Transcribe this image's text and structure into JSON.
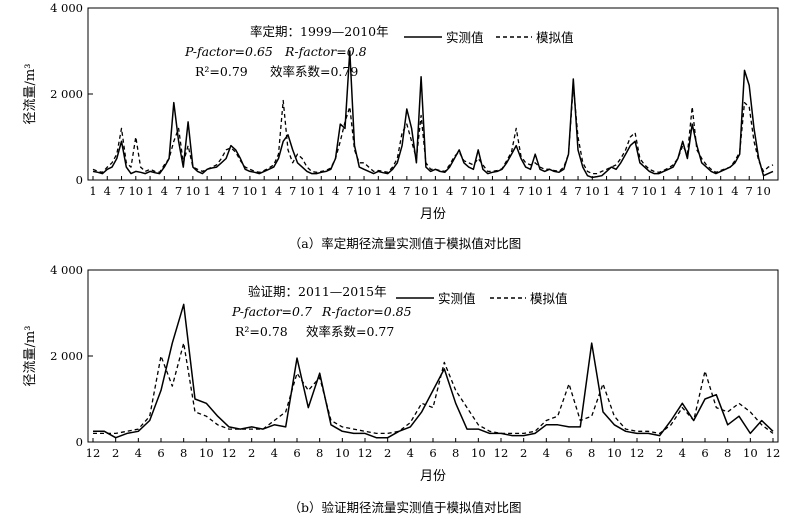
{
  "chart_data": [
    {
      "type": "line",
      "xlabel": "月份",
      "ylabel": "径流量/m³",
      "ylim": [
        0,
        4000
      ],
      "yticks": [
        "0",
        "2 000",
        "4 000"
      ],
      "categories": [
        "1",
        "",
        "",
        "4",
        "",
        "",
        "7",
        "",
        "",
        "10",
        "",
        "",
        "1",
        "",
        "",
        "4",
        "",
        "",
        "7",
        "",
        "",
        "10",
        "",
        "",
        "1",
        "",
        "",
        "4",
        "",
        "",
        "7",
        "",
        "",
        "10",
        "",
        "",
        "1",
        "",
        "",
        "4",
        "",
        "",
        "7",
        "",
        "",
        "10",
        "",
        "",
        "1",
        "",
        "",
        "4",
        "",
        "",
        "7",
        "",
        "",
        "10",
        "",
        "",
        "1",
        "",
        "",
        "4",
        "",
        "",
        "7",
        "",
        "",
        "10",
        "",
        "",
        "1",
        "",
        "",
        "4",
        "",
        "",
        "7",
        "",
        "",
        "10",
        "",
        "",
        "1",
        "",
        "",
        "4",
        "",
        "",
        "7",
        "",
        "",
        "10",
        "",
        "",
        "1",
        "",
        "",
        "4",
        "",
        "",
        "7",
        "",
        "",
        "10",
        "",
        "",
        "1",
        "",
        "",
        "4",
        "",
        "",
        "7",
        "",
        "",
        "10",
        "",
        "",
        "1",
        "",
        "",
        "4",
        "",
        "",
        "7",
        "",
        "",
        "10",
        "",
        "",
        "1",
        "",
        "",
        "4",
        "",
        "",
        "7",
        "",
        "",
        "10",
        "",
        ""
      ],
      "series": [
        {
          "name": "实测值",
          "style": "solid",
          "values": [
            200,
            180,
            150,
            250,
            300,
            500,
            900,
            300,
            150,
            200,
            180,
            150,
            200,
            170,
            150,
            300,
            500,
            1800,
            900,
            300,
            1350,
            300,
            200,
            150,
            250,
            280,
            300,
            400,
            500,
            800,
            700,
            500,
            250,
            200,
            180,
            150,
            200,
            250,
            300,
            500,
            900,
            1050,
            700,
            400,
            300,
            200,
            150,
            150,
            180,
            200,
            250,
            500,
            1300,
            1200,
            3000,
            800,
            300,
            250,
            200,
            150,
            200,
            170,
            150,
            250,
            400,
            800,
            1650,
            1200,
            400,
            2400,
            300,
            200,
            250,
            200,
            180,
            300,
            500,
            700,
            400,
            300,
            250,
            700,
            250,
            150,
            180,
            200,
            250,
            400,
            600,
            800,
            500,
            300,
            250,
            600,
            250,
            200,
            250,
            200,
            180,
            250,
            600,
            2350,
            700,
            300,
            100,
            60,
            80,
            100,
            200,
            300,
            250,
            400,
            600,
            800,
            900,
            400,
            300,
            200,
            150,
            150,
            200,
            250,
            300,
            500,
            900,
            500,
            1300,
            800,
            400,
            300,
            200,
            150,
            200,
            250,
            300,
            400,
            600,
            2550,
            2200,
            1200,
            500,
            100,
            150,
            200
          ]
        },
        {
          "name": "模拟值",
          "style": "dashed",
          "values": [
            250,
            200,
            180,
            300,
            400,
            600,
            1200,
            400,
            300,
            1000,
            300,
            200,
            250,
            200,
            180,
            350,
            500,
            900,
            1200,
            400,
            800,
            300,
            250,
            200,
            250,
            300,
            350,
            500,
            700,
            750,
            650,
            450,
            300,
            250,
            200,
            180,
            220,
            280,
            350,
            600,
            1850,
            700,
            400,
            600,
            500,
            300,
            200,
            180,
            200,
            220,
            280,
            500,
            900,
            1350,
            1700,
            700,
            400,
            400,
            300,
            200,
            220,
            200,
            180,
            300,
            500,
            1100,
            1300,
            900,
            500,
            1500,
            400,
            250,
            250,
            220,
            200,
            350,
            550,
            650,
            450,
            400,
            350,
            500,
            350,
            200,
            200,
            220,
            260,
            450,
            650,
            1200,
            550,
            400,
            350,
            400,
            300,
            250,
            250,
            220,
            200,
            300,
            600,
            2200,
            1000,
            400,
            200,
            150,
            150,
            200,
            250,
            300,
            350,
            500,
            700,
            1000,
            1100,
            500,
            350,
            250,
            200,
            180,
            220,
            280,
            350,
            500,
            800,
            600,
            1700,
            700,
            500,
            350,
            250,
            180,
            220,
            260,
            300,
            450,
            650,
            1800,
            1700,
            900,
            450,
            200,
            300,
            350
          ]
        }
      ],
      "annotation": [
        "率定期：1999—2010年",
        "P-factor=0.65",
        "R-factor=0.8",
        "R²=0.79",
        "效率系数=0.79"
      ],
      "caption": "（a）率定期径流量实测值于模拟值对比图",
      "legend": "top-right"
    },
    {
      "type": "line",
      "xlabel": "月份",
      "ylabel": "径流量/m³",
      "ylim": [
        0,
        4000
      ],
      "yticks": [
        "0",
        "2 000",
        "4 000"
      ],
      "categories": [
        "12",
        "",
        "2",
        "",
        "4",
        "",
        "6",
        "",
        "8",
        "",
        "10",
        "",
        "12",
        "",
        "2",
        "",
        "4",
        "",
        "6",
        "",
        "8",
        "",
        "10",
        "",
        "12",
        "",
        "2",
        "",
        "4",
        "",
        "6",
        "",
        "8",
        "",
        "10",
        "",
        "12",
        "",
        "2",
        "",
        "4",
        "",
        "6",
        "",
        "8",
        "",
        "10",
        "",
        "12",
        "",
        "2",
        "",
        "4",
        "",
        "6",
        "",
        "8",
        "",
        "10",
        "",
        "12"
      ],
      "series": [
        {
          "name": "实测值",
          "style": "solid",
          "values": [
            250,
            250,
            100,
            200,
            250,
            500,
            1200,
            2300,
            3200,
            1000,
            900,
            600,
            350,
            300,
            350,
            300,
            400,
            350,
            1950,
            800,
            1600,
            400,
            250,
            200,
            200,
            100,
            100,
            250,
            350,
            700,
            1200,
            1700,
            900,
            300,
            300,
            200,
            200,
            150,
            150,
            200,
            400,
            400,
            350,
            350,
            2300,
            700,
            400,
            250,
            200,
            200,
            150,
            500,
            900,
            500,
            1000,
            1100,
            400,
            600,
            200,
            500,
            250
          ]
        },
        {
          "name": "模拟值",
          "style": "dashed",
          "values": [
            200,
            200,
            200,
            250,
            300,
            600,
            2000,
            1300,
            2300,
            700,
            600,
            400,
            300,
            300,
            300,
            300,
            500,
            700,
            1600,
            1200,
            1500,
            500,
            350,
            300,
            250,
            200,
            200,
            250,
            450,
            900,
            800,
            1850,
            1200,
            800,
            400,
            250,
            200,
            200,
            200,
            250,
            500,
            600,
            1350,
            500,
            600,
            1350,
            600,
            300,
            250,
            250,
            200,
            400,
            800,
            500,
            1650,
            800,
            700,
            900,
            700,
            400,
            200
          ]
        }
      ],
      "annotation": [
        "验证期：2011—2015年",
        "P-factor=0.7",
        "R-factor=0.85",
        "R²=0.78",
        "效率系数=0.77"
      ],
      "caption": "（b）验证期径流量实测值于模拟值对比图",
      "legend": "top-right"
    }
  ]
}
